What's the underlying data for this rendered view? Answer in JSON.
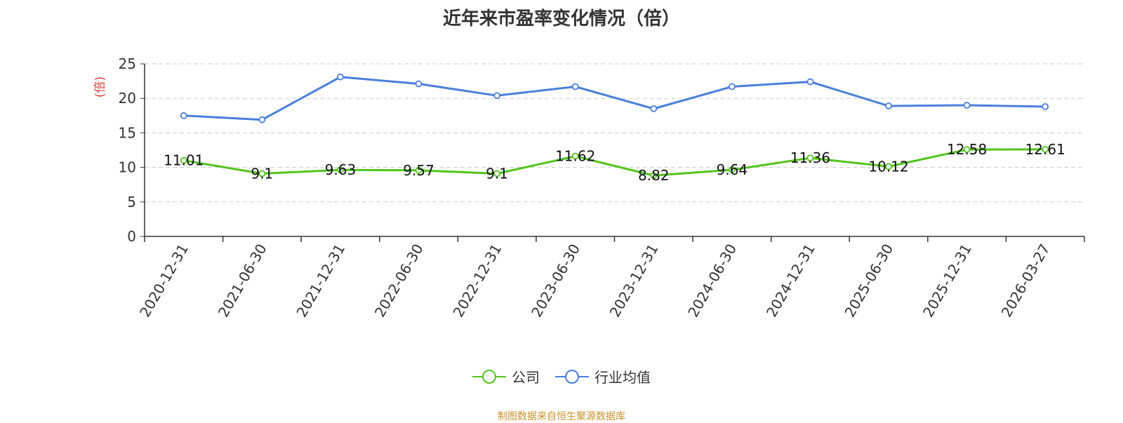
{
  "title": "近年来市盈率变化情况（倍）",
  "footer": "制图数据来自恒生聚源数据库",
  "colors": {
    "company": "#52c41a",
    "industry": "#4a7fdc",
    "unit": "#e53935",
    "axis": "#333333",
    "grid": "#cccccc"
  },
  "chart_data": {
    "type": "line",
    "title": "近年来市盈率变化情况（倍）",
    "ylabel": "(倍)",
    "ylim": [
      0,
      25
    ],
    "yticks": [
      "0",
      "5",
      "10",
      "15",
      "20",
      "25"
    ],
    "grid": true,
    "legend_position": "bottom",
    "categories": [
      "2020-12-31",
      "2021-06-30",
      "2021-12-31",
      "2022-06-30",
      "2022-12-31",
      "2023-06-30",
      "2023-12-31",
      "2024-06-30",
      "2024-12-31",
      "2025-06-30",
      "2025-12-31",
      "2026-03-27"
    ],
    "series": [
      {
        "name": "公司",
        "values": [
          11.01,
          9.1,
          9.63,
          9.57,
          9.1,
          11.62,
          8.82,
          9.64,
          11.36,
          10.12,
          12.58,
          12.61
        ],
        "labels": [
          "11.01",
          "9.1",
          "9.63",
          "9.57",
          "9.1",
          "11.62",
          "8.82",
          "9.64",
          "11.36",
          "10.12",
          "12.58",
          "12.61"
        ]
      },
      {
        "name": "行业均值",
        "values": [
          17.5,
          16.9,
          23.1,
          22.1,
          20.4,
          21.7,
          18.5,
          21.7,
          22.4,
          18.9,
          19.0,
          18.8
        ]
      }
    ]
  }
}
